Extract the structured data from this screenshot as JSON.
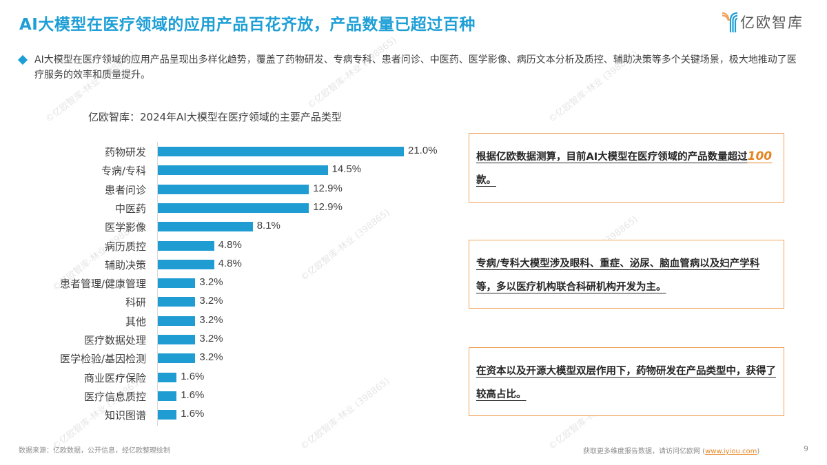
{
  "header": {
    "title": "AI大模型在医疗领域的应用产品百花齐放，产品数量已超过百种",
    "logo_text": "亿欧智库",
    "logo_icon": "yiou-logo-icon"
  },
  "intro": {
    "bullet_icon": "diamond-bullet-icon",
    "text": "AI大模型在医疗领域的应用产品呈现出多样化趋势，覆盖了药物研发、专病专科、患者问诊、中医药、医学影像、病历文本分析及质控、辅助决策等多个关键场景，极大地推动了医疗服务的效率和质量提升。"
  },
  "chart_data": {
    "type": "bar",
    "orientation": "horizontal",
    "title": "亿欧智库：2024年AI大模型在医疗领域的主要产品类型",
    "xlabel": "",
    "ylabel": "",
    "categories": [
      "药物研发",
      "专病/专科",
      "患者问诊",
      "中医药",
      "医学影像",
      "病历质控",
      "辅助决策",
      "患者管理/健康管理",
      "科研",
      "其他",
      "医疗数据处理",
      "医学检验/基因检测",
      "商业医疗保险",
      "医疗信息质控",
      "知识图谱"
    ],
    "values": [
      21.0,
      14.5,
      12.9,
      12.9,
      8.1,
      4.8,
      4.8,
      3.2,
      3.2,
      3.2,
      3.2,
      3.2,
      1.6,
      1.6,
      1.6
    ],
    "value_labels": [
      "21.0%",
      "14.5%",
      "12.9%",
      "12.9%",
      "8.1%",
      "4.8%",
      "4.8%",
      "3.2%",
      "3.2%",
      "3.2%",
      "3.2%",
      "3.2%",
      "1.6%",
      "1.6%",
      "1.6%"
    ],
    "unit": "%",
    "bar_color": "#1f9dd3",
    "grid": false,
    "legend": "none"
  },
  "callouts": [
    {
      "text_before": "根据亿欧数据测算，目前AI大模型在医疗领域的产品数量超过",
      "highlight": "100",
      "text_after": " 款。"
    },
    {
      "text": "专病/专科大模型涉及眼科、重症、泌尿、脑血管病以及妇产学科等，多以医疗机构联合科研机构开发为主。"
    },
    {
      "text": "在资本以及开源大模型双层作用下，药物研发在产品类型中，获得了较高占比。"
    }
  ],
  "footer": {
    "source": "数据来源：亿欧数据，公开信息，经亿欧整理绘制",
    "note_prefix": "获取更多维度报告数据，请访问亿欧网 (",
    "link": "www.iyiou.com",
    "note_suffix": ")",
    "page_number": "9"
  },
  "watermark": "©亿欧智库-林业 (398865)",
  "colors": {
    "title": "#1d9fd6",
    "bar": "#1f9dd3",
    "callout_border": "#f0a15a",
    "highlight": "#e5831f"
  }
}
